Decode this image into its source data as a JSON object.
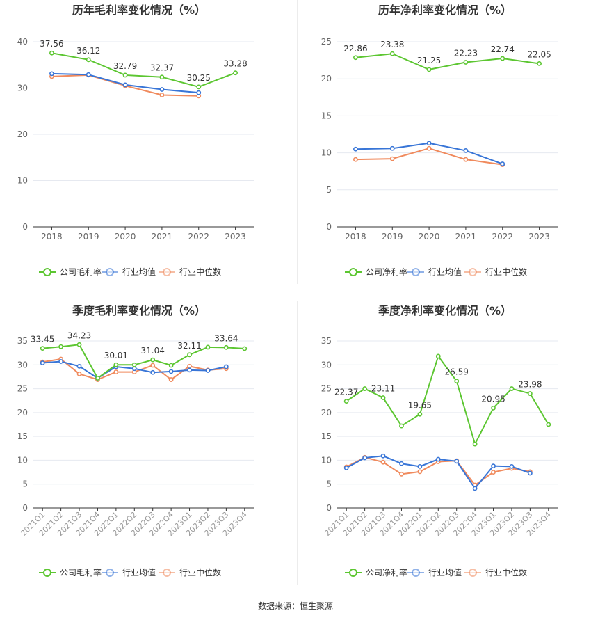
{
  "source_note": "数据来源：恒生聚源",
  "colors": {
    "company": "#5cc631",
    "industry_avg": "#3875d7",
    "industry_median": "#f08a5d",
    "grid": "#e6e9f0",
    "axis": "#333333",
    "tick_text": "#666666",
    "title": "#333333"
  },
  "chart_data": [
    {
      "type": "line",
      "title": "历年毛利率变化情况（%）",
      "categories": [
        "2018",
        "2019",
        "2020",
        "2021",
        "2022",
        "2023"
      ],
      "ylim": [
        0,
        40
      ],
      "yticks": [
        0,
        10,
        20,
        30,
        40
      ],
      "grid": true,
      "legend_position": "bottom",
      "series": [
        {
          "name": "公司毛利率",
          "color": "#5cc631",
          "values": [
            37.56,
            36.12,
            32.79,
            32.37,
            30.25,
            33.28
          ],
          "labels": [
            37.56,
            36.12,
            32.79,
            32.37,
            30.25,
            33.28
          ]
        },
        {
          "name": "行业均值",
          "color": "#3875d7",
          "values": [
            33.1,
            32.9,
            30.7,
            29.7,
            29.0,
            null
          ]
        },
        {
          "name": "行业中位数",
          "color": "#f08a5d",
          "values": [
            32.5,
            32.8,
            30.5,
            28.5,
            28.3,
            null
          ]
        }
      ]
    },
    {
      "type": "line",
      "title": "历年净利率变化情况（%）",
      "categories": [
        "2018",
        "2019",
        "2020",
        "2021",
        "2022",
        "2023"
      ],
      "ylim": [
        0,
        25
      ],
      "yticks": [
        0,
        5,
        10,
        15,
        20,
        25
      ],
      "grid": true,
      "legend_position": "bottom",
      "series": [
        {
          "name": "公司净利率",
          "color": "#5cc631",
          "values": [
            22.86,
            23.38,
            21.25,
            22.23,
            22.74,
            22.05
          ],
          "labels": [
            22.86,
            23.38,
            21.25,
            22.23,
            22.74,
            22.05
          ]
        },
        {
          "name": "行业均值",
          "color": "#3875d7",
          "values": [
            10.5,
            10.6,
            11.3,
            10.3,
            8.5,
            null
          ]
        },
        {
          "name": "行业中位数",
          "color": "#f08a5d",
          "values": [
            9.1,
            9.2,
            10.6,
            9.1,
            8.4,
            null
          ]
        }
      ]
    },
    {
      "type": "line",
      "title": "季度毛利率变化情况（%）",
      "categories": [
        "2021Q1",
        "2021Q2",
        "2021Q3",
        "2021Q4",
        "2022Q1",
        "2022Q2",
        "2022Q3",
        "2022Q4",
        "2023Q1",
        "2023Q2",
        "2023Q3",
        "2023Q4"
      ],
      "ylim": [
        0,
        35
      ],
      "yticks": [
        0,
        5,
        10,
        15,
        20,
        25,
        30,
        35
      ],
      "grid": true,
      "legend_position": "bottom",
      "series": [
        {
          "name": "公司毛利率",
          "color": "#5cc631",
          "values": [
            33.45,
            33.8,
            34.23,
            27.2,
            30.01,
            30.0,
            31.04,
            29.9,
            32.11,
            33.7,
            33.64,
            33.4
          ],
          "labels": [
            33.45,
            null,
            34.23,
            null,
            30.01,
            null,
            31.04,
            null,
            32.11,
            null,
            33.64,
            null
          ]
        },
        {
          "name": "行业均值",
          "color": "#3875d7",
          "values": [
            30.4,
            30.7,
            29.7,
            27.2,
            29.6,
            29.2,
            28.4,
            28.6,
            28.9,
            28.8,
            29.6,
            null
          ]
        },
        {
          "name": "行业中位数",
          "color": "#f08a5d",
          "values": [
            30.6,
            31.2,
            28.1,
            26.9,
            28.5,
            28.5,
            29.9,
            26.9,
            29.7,
            28.9,
            29.2,
            null
          ]
        }
      ]
    },
    {
      "type": "line",
      "title": "季度净利率变化情况（%）",
      "categories": [
        "2021Q1",
        "2021Q2",
        "2021Q3",
        "2021Q4",
        "2022Q1",
        "2022Q2",
        "2022Q3",
        "2022Q4",
        "2023Q1",
        "2023Q2",
        "2023Q3",
        "2023Q4"
      ],
      "ylim": [
        0,
        35
      ],
      "yticks": [
        0,
        5,
        10,
        15,
        20,
        25,
        30,
        35
      ],
      "grid": true,
      "legend_position": "bottom",
      "series": [
        {
          "name": "公司净利率",
          "color": "#5cc631",
          "values": [
            22.37,
            25.0,
            23.11,
            17.2,
            19.65,
            31.8,
            26.59,
            13.4,
            20.95,
            25.0,
            23.98,
            17.5
          ],
          "labels": [
            22.37,
            null,
            23.11,
            null,
            19.65,
            null,
            26.59,
            null,
            20.95,
            null,
            23.98,
            null
          ]
        },
        {
          "name": "行业均值",
          "color": "#3875d7",
          "values": [
            8.4,
            10.5,
            10.9,
            9.3,
            8.7,
            10.2,
            9.8,
            4.1,
            8.8,
            8.7,
            7.3,
            null
          ]
        },
        {
          "name": "行业中位数",
          "color": "#f08a5d",
          "values": [
            8.6,
            10.6,
            9.6,
            7.1,
            7.6,
            9.7,
            9.9,
            4.8,
            7.5,
            8.3,
            7.6,
            null
          ]
        }
      ]
    }
  ]
}
